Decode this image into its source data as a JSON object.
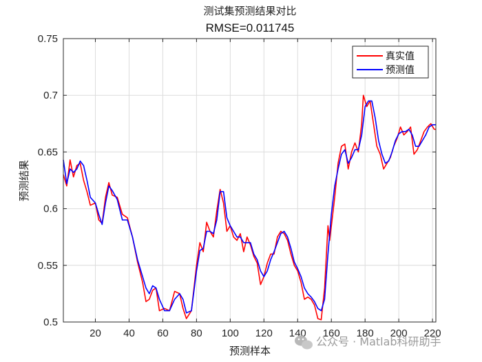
{
  "chart_data": {
    "type": "line",
    "title": "测试集预测结果对比",
    "subtitle": "RMSE=0.011745",
    "xlabel": "预测样本",
    "ylabel": "预测结果",
    "xlim": [
      1,
      222
    ],
    "ylim": [
      0.5,
      0.75
    ],
    "xticks": [
      20,
      40,
      60,
      80,
      100,
      120,
      140,
      160,
      180,
      200,
      220
    ],
    "yticks": [
      0.5,
      0.55,
      0.6,
      0.65,
      0.7,
      0.75
    ],
    "xtick_labels": [
      "20",
      "40",
      "60",
      "80",
      "100",
      "120",
      "140",
      "160",
      "180",
      "200",
      "220"
    ],
    "ytick_labels": [
      "0.5",
      "0.55",
      "0.6",
      "0.65",
      "0.7",
      "0.75"
    ],
    "grid": true,
    "legend_position": "top-right",
    "series": [
      {
        "name": "真实值",
        "color": "#ff0000",
        "anchors": [
          [
            1,
            0.63
          ],
          [
            3,
            0.62
          ],
          [
            5,
            0.643
          ],
          [
            7,
            0.628
          ],
          [
            9,
            0.638
          ],
          [
            11,
            0.64
          ],
          [
            13,
            0.625
          ],
          [
            15,
            0.615
          ],
          [
            17,
            0.603
          ],
          [
            20,
            0.605
          ],
          [
            22,
            0.59
          ],
          [
            24,
            0.587
          ],
          [
            26,
            0.61
          ],
          [
            28,
            0.623
          ],
          [
            30,
            0.612
          ],
          [
            33,
            0.61
          ],
          [
            36,
            0.595
          ],
          [
            39,
            0.592
          ],
          [
            42,
            0.575
          ],
          [
            45,
            0.553
          ],
          [
            48,
            0.535
          ],
          [
            50,
            0.518
          ],
          [
            52,
            0.52
          ],
          [
            54,
            0.528
          ],
          [
            56,
            0.53
          ],
          [
            58,
            0.51
          ],
          [
            61,
            0.512
          ],
          [
            64,
            0.51
          ],
          [
            67,
            0.527
          ],
          [
            70,
            0.525
          ],
          [
            72,
            0.512
          ],
          [
            74,
            0.503
          ],
          [
            77,
            0.51
          ],
          [
            80,
            0.55
          ],
          [
            82,
            0.57
          ],
          [
            84,
            0.562
          ],
          [
            86,
            0.588
          ],
          [
            88,
            0.58
          ],
          [
            90,
            0.575
          ],
          [
            92,
            0.598
          ],
          [
            94,
            0.617
          ],
          [
            96,
            0.605
          ],
          [
            98,
            0.58
          ],
          [
            100,
            0.585
          ],
          [
            102,
            0.575
          ],
          [
            104,
            0.572
          ],
          [
            106,
            0.578
          ],
          [
            108,
            0.562
          ],
          [
            110,
            0.575
          ],
          [
            112,
            0.568
          ],
          [
            114,
            0.558
          ],
          [
            116,
            0.552
          ],
          [
            118,
            0.533
          ],
          [
            120,
            0.54
          ],
          [
            122,
            0.552
          ],
          [
            124,
            0.56
          ],
          [
            126,
            0.56
          ],
          [
            128,
            0.575
          ],
          [
            130,
            0.58
          ],
          [
            132,
            0.578
          ],
          [
            134,
            0.572
          ],
          [
            136,
            0.56
          ],
          [
            138,
            0.55
          ],
          [
            140,
            0.545
          ],
          [
            142,
            0.535
          ],
          [
            144,
            0.52
          ],
          [
            146,
            0.522
          ],
          [
            148,
            0.52
          ],
          [
            150,
            0.515
          ],
          [
            152,
            0.503
          ],
          [
            154,
            0.502
          ],
          [
            156,
            0.53
          ],
          [
            158,
            0.585
          ],
          [
            159,
            0.572
          ],
          [
            162,
            0.61
          ],
          [
            164,
            0.64
          ],
          [
            166,
            0.655
          ],
          [
            168,
            0.657
          ],
          [
            170,
            0.635
          ],
          [
            172,
            0.65
          ],
          [
            174,
            0.658
          ],
          [
            176,
            0.65
          ],
          [
            178,
            0.675
          ],
          [
            179,
            0.7
          ],
          [
            181,
            0.69
          ],
          [
            183,
            0.695
          ],
          [
            185,
            0.675
          ],
          [
            187,
            0.655
          ],
          [
            189,
            0.648
          ],
          [
            191,
            0.635
          ],
          [
            193,
            0.64
          ],
          [
            195,
            0.645
          ],
          [
            197,
            0.655
          ],
          [
            199,
            0.662
          ],
          [
            201,
            0.672
          ],
          [
            203,
            0.665
          ],
          [
            205,
            0.668
          ],
          [
            207,
            0.672
          ],
          [
            209,
            0.648
          ],
          [
            211,
            0.652
          ],
          [
            213,
            0.66
          ],
          [
            215,
            0.668
          ],
          [
            217,
            0.672
          ],
          [
            219,
            0.675
          ],
          [
            221,
            0.67
          ],
          [
            222,
            0.67
          ]
        ]
      },
      {
        "name": "预测值",
        "color": "#0000ff",
        "anchors": [
          [
            1,
            0.643
          ],
          [
            3,
            0.622
          ],
          [
            5,
            0.635
          ],
          [
            7,
            0.632
          ],
          [
            9,
            0.635
          ],
          [
            11,
            0.642
          ],
          [
            13,
            0.638
          ],
          [
            15,
            0.625
          ],
          [
            17,
            0.61
          ],
          [
            20,
            0.605
          ],
          [
            22,
            0.595
          ],
          [
            24,
            0.586
          ],
          [
            26,
            0.605
          ],
          [
            28,
            0.62
          ],
          [
            30,
            0.616
          ],
          [
            33,
            0.608
          ],
          [
            36,
            0.59
          ],
          [
            39,
            0.59
          ],
          [
            42,
            0.575
          ],
          [
            45,
            0.555
          ],
          [
            48,
            0.54
          ],
          [
            50,
            0.53
          ],
          [
            52,
            0.525
          ],
          [
            54,
            0.532
          ],
          [
            56,
            0.53
          ],
          [
            58,
            0.52
          ],
          [
            61,
            0.51
          ],
          [
            64,
            0.51
          ],
          [
            67,
            0.52
          ],
          [
            70,
            0.525
          ],
          [
            72,
            0.52
          ],
          [
            74,
            0.508
          ],
          [
            77,
            0.51
          ],
          [
            80,
            0.545
          ],
          [
            82,
            0.563
          ],
          [
            84,
            0.565
          ],
          [
            86,
            0.58
          ],
          [
            88,
            0.58
          ],
          [
            90,
            0.578
          ],
          [
            92,
            0.59
          ],
          [
            94,
            0.615
          ],
          [
            96,
            0.615
          ],
          [
            98,
            0.592
          ],
          [
            100,
            0.585
          ],
          [
            102,
            0.58
          ],
          [
            104,
            0.575
          ],
          [
            106,
            0.575
          ],
          [
            108,
            0.57
          ],
          [
            110,
            0.57
          ],
          [
            112,
            0.57
          ],
          [
            114,
            0.56
          ],
          [
            116,
            0.555
          ],
          [
            118,
            0.545
          ],
          [
            120,
            0.54
          ],
          [
            122,
            0.545
          ],
          [
            124,
            0.555
          ],
          [
            126,
            0.562
          ],
          [
            128,
            0.57
          ],
          [
            130,
            0.578
          ],
          [
            132,
            0.58
          ],
          [
            134,
            0.575
          ],
          [
            136,
            0.565
          ],
          [
            138,
            0.553
          ],
          [
            140,
            0.547
          ],
          [
            142,
            0.54
          ],
          [
            144,
            0.53
          ],
          [
            146,
            0.525
          ],
          [
            148,
            0.522
          ],
          [
            150,
            0.518
          ],
          [
            152,
            0.512
          ],
          [
            154,
            0.51
          ],
          [
            156,
            0.52
          ],
          [
            158,
            0.56
          ],
          [
            160,
            0.595
          ],
          [
            162,
            0.62
          ],
          [
            164,
            0.635
          ],
          [
            166,
            0.648
          ],
          [
            168,
            0.652
          ],
          [
            170,
            0.64
          ],
          [
            172,
            0.645
          ],
          [
            174,
            0.652
          ],
          [
            176,
            0.652
          ],
          [
            178,
            0.665
          ],
          [
            180,
            0.69
          ],
          [
            182,
            0.695
          ],
          [
            184,
            0.695
          ],
          [
            186,
            0.68
          ],
          [
            188,
            0.66
          ],
          [
            190,
            0.648
          ],
          [
            192,
            0.64
          ],
          [
            194,
            0.642
          ],
          [
            196,
            0.65
          ],
          [
            198,
            0.66
          ],
          [
            200,
            0.666
          ],
          [
            202,
            0.668
          ],
          [
            204,
            0.668
          ],
          [
            206,
            0.67
          ],
          [
            208,
            0.665
          ],
          [
            210,
            0.655
          ],
          [
            212,
            0.655
          ],
          [
            214,
            0.66
          ],
          [
            216,
            0.665
          ],
          [
            218,
            0.672
          ],
          [
            220,
            0.674
          ],
          [
            222,
            0.674
          ]
        ]
      }
    ]
  },
  "watermark": {
    "text": "公众号 · Matlab科研助手",
    "icon": "wechat-icon"
  }
}
